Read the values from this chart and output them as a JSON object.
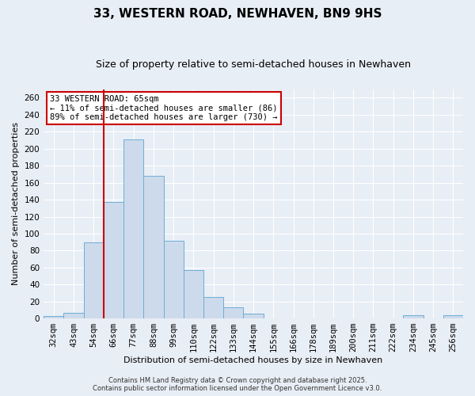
{
  "title": "33, WESTERN ROAD, NEWHAVEN, BN9 9HS",
  "subtitle": "Size of property relative to semi-detached houses in Newhaven",
  "xlabel": "Distribution of semi-detached houses by size in Newhaven",
  "ylabel": "Number of semi-detached properties",
  "bin_labels": [
    "32sqm",
    "43sqm",
    "54sqm",
    "66sqm",
    "77sqm",
    "88sqm",
    "99sqm",
    "110sqm",
    "122sqm",
    "133sqm",
    "144sqm",
    "155sqm",
    "166sqm",
    "178sqm",
    "189sqm",
    "200sqm",
    "211sqm",
    "222sqm",
    "234sqm",
    "245sqm",
    "256sqm"
  ],
  "bar_values": [
    3,
    7,
    90,
    137,
    211,
    168,
    92,
    57,
    25,
    13,
    6,
    0,
    0,
    0,
    0,
    0,
    0,
    0,
    4,
    0,
    4
  ],
  "bar_color": "#cddaeb",
  "bar_edge_color": "#6baed6",
  "vline_idx": 3,
  "vline_color": "#cc0000",
  "annotation_title": "33 WESTERN ROAD: 65sqm",
  "annotation_line1": "← 11% of semi-detached houses are smaller (86)",
  "annotation_line2": "89% of semi-detached houses are larger (730) →",
  "ylim": [
    0,
    270
  ],
  "yticks": [
    0,
    20,
    40,
    60,
    80,
    100,
    120,
    140,
    160,
    180,
    200,
    220,
    240,
    260
  ],
  "footer1": "Contains HM Land Registry data © Crown copyright and database right 2025.",
  "footer2": "Contains public sector information licensed under the Open Government Licence v3.0.",
  "bg_color": "#e8eef5",
  "plot_bg_color": "#e8eef5",
  "grid_color": "#ffffff",
  "title_fontsize": 11,
  "subtitle_fontsize": 9,
  "axis_label_fontsize": 8,
  "tick_fontsize": 7.5,
  "annotation_fontsize": 7.5,
  "footer_fontsize": 6
}
